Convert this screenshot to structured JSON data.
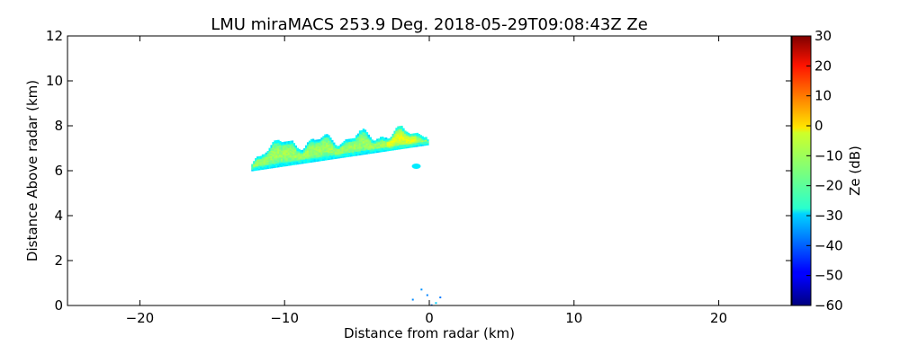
{
  "chart_data": {
    "type": "heatmap",
    "title": "LMU miraMACS 253.9 Deg. 2018-05-29T09:08:43Z  Ze",
    "xlabel": "Distance from radar (km)",
    "ylabel": "Distance Above radar  (km)",
    "xlim": [
      -25,
      25
    ],
    "ylim": [
      0,
      12
    ],
    "x_ticks": [
      -20,
      -10,
      0,
      10,
      20
    ],
    "x_tick_labels": [
      "−20",
      "−10",
      "0",
      "10",
      "20"
    ],
    "y_ticks": [
      0,
      2,
      4,
      6,
      8,
      10,
      12
    ],
    "y_tick_labels": [
      "0",
      "2",
      "4",
      "6",
      "8",
      "10",
      "12"
    ],
    "colorbar": {
      "label": "Ze (dB)",
      "range": [
        -60,
        30
      ],
      "ticks": [
        -60,
        -50,
        -40,
        -30,
        -20,
        -10,
        0,
        10,
        20,
        30
      ],
      "tick_labels": [
        "−60",
        "−50",
        "−40",
        "−30",
        "−20",
        "−10",
        "0",
        "10",
        "20",
        "30"
      ],
      "colormap": "jet"
    },
    "grid": false,
    "echoes": [
      {
        "name": "cloud layer",
        "x_range_km": [
          -12.3,
          0.3
        ],
        "base_km": [
          6.0,
          7.2
        ],
        "top_km": [
          7.0,
          7.8
        ],
        "ze_range_db": [
          -30,
          -10
        ],
        "core_ze_db": -10
      },
      {
        "name": "small echo",
        "x_km": -0.9,
        "y_km": 6.2,
        "ze_db": -28
      },
      {
        "name": "ground clutter",
        "x_range_km": [
          -1.2,
          0.8
        ],
        "y_range_km": [
          0,
          0.8
        ],
        "ze_db": -35
      }
    ]
  }
}
